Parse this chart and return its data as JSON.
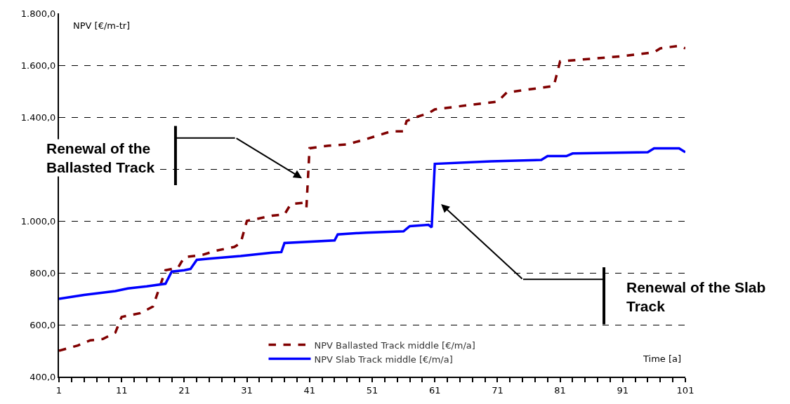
{
  "chart_data": {
    "type": "line",
    "xlabel": "Time [a]",
    "ylabel": "NPV [€/m-tr]",
    "xlim": [
      1,
      101
    ],
    "xticks": [
      1,
      11,
      21,
      31,
      41,
      51,
      61,
      71,
      81,
      91,
      101
    ],
    "ylim": [
      400,
      1800
    ],
    "yticks": [
      {
        "value": 400,
        "label": "400,0"
      },
      {
        "value": 600,
        "label": "600,0"
      },
      {
        "value": 800,
        "label": "800,0"
      },
      {
        "value": 1000,
        "label": "1.000,0"
      },
      {
        "value": 1200,
        "label": null
      },
      {
        "value": 1400,
        "label": "1.400,0"
      },
      {
        "value": 1600,
        "label": "1.600,0"
      },
      {
        "value": 1800,
        "label": "1.800,0"
      }
    ],
    "grid": "y",
    "legend": "bottom",
    "series": [
      {
        "name": "NPV Ballasted Track middle [€/m/a]",
        "color": "#800000",
        "line_style": "dashed",
        "x": [
          1,
          4,
          6,
          8,
          10,
          11,
          14,
          16,
          18,
          20,
          21,
          24,
          26,
          29,
          30,
          31,
          35,
          37,
          38,
          40,
          40.5,
          41,
          44,
          47,
          50,
          54,
          56,
          56.5,
          58,
          60,
          61,
          66,
          71,
          72.5,
          80,
          81,
          86,
          91,
          96,
          97,
          100,
          101
        ],
        "values": [
          500,
          520,
          540,
          545,
          570,
          630,
          645,
          670,
          810,
          820,
          860,
          870,
          885,
          900,
          915,
          1000,
          1020,
          1025,
          1065,
          1070,
          1050,
          1280,
          1290,
          1295,
          1315,
          1345,
          1345,
          1385,
          1400,
          1415,
          1430,
          1445,
          1460,
          1495,
          1520,
          1615,
          1625,
          1635,
          1650,
          1665,
          1675,
          1665
        ]
      },
      {
        "name": "NPV Slab Track middle [€/m/a]",
        "color": "#0000ff",
        "line_style": "solid",
        "x": [
          1,
          5,
          10,
          12,
          15,
          18,
          19,
          21,
          22,
          23,
          25,
          30,
          35,
          36.5,
          37,
          45,
          45.5,
          50,
          56,
          57,
          60,
          60.5,
          61,
          70,
          78,
          79,
          82,
          83,
          95,
          96,
          100,
          101
        ],
        "values": [
          700,
          715,
          730,
          740,
          748,
          758,
          805,
          810,
          815,
          850,
          855,
          865,
          878,
          880,
          915,
          925,
          948,
          955,
          960,
          980,
          985,
          975,
          1220,
          1230,
          1235,
          1250,
          1250,
          1260,
          1265,
          1280,
          1280,
          1265
        ]
      }
    ],
    "annotations": [
      "Renewal of the\nBallasted Track",
      "Renewal of the Slab\nTrack"
    ]
  }
}
